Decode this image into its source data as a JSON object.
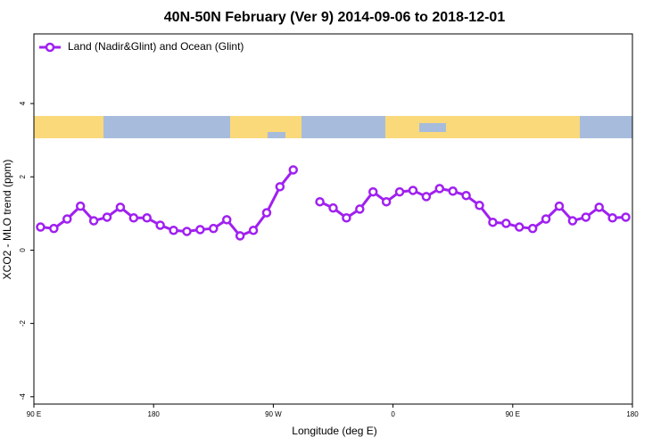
{
  "chart_data": {
    "type": "line",
    "title": "40N-50N February (Ver 9)   2014-09-06 to 2018-12-01",
    "x_label": "Longitude (deg E)",
    "y_label": "XCO2 - MLO trend (ppm)",
    "x": [
      95,
      105,
      115,
      125,
      135,
      145,
      155,
      165,
      175,
      185,
      195,
      205,
      215,
      225,
      235,
      245,
      255,
      265,
      275,
      285,
      295,
      305,
      315,
      325,
      335,
      345,
      355,
      365,
      375,
      385,
      395,
      405,
      415,
      425,
      435,
      445,
      455,
      465,
      475,
      485,
      495,
      505,
      515,
      525,
      535
    ],
    "series": [
      {
        "name": "Land (Nadir&Glint) and Ocean (Glint)",
        "color": "#a020f0",
        "values": [
          0.63,
          0.59,
          0.85,
          1.2,
          0.8,
          0.9,
          1.17,
          0.88,
          0.88,
          0.68,
          0.54,
          0.51,
          0.56,
          0.59,
          0.83,
          0.39,
          0.54,
          1.02,
          1.73,
          2.19,
          null,
          1.32,
          1.15,
          0.88,
          1.12,
          1.59,
          1.32,
          1.59,
          1.63,
          1.46,
          1.68,
          1.61,
          1.49,
          1.22,
          0.76,
          0.73,
          0.63,
          0.59,
          0.85,
          1.2,
          0.8,
          0.9,
          1.17,
          0.88,
          0.9
        ]
      }
    ],
    "xlim": [
      90,
      540
    ],
    "xticks": [
      {
        "value": 90,
        "label": "90 E"
      },
      {
        "value": 180,
        "label": "180"
      },
      {
        "value": 270,
        "label": "90 W"
      },
      {
        "value": 360,
        "label": "0"
      },
      {
        "value": 450,
        "label": "90 E"
      },
      {
        "value": 540,
        "label": "180"
      }
    ],
    "ylim": [
      -4.2,
      5.9
    ],
    "yticks": [
      -4,
      -2,
      0,
      2,
      4
    ],
    "legend": "top-left"
  }
}
